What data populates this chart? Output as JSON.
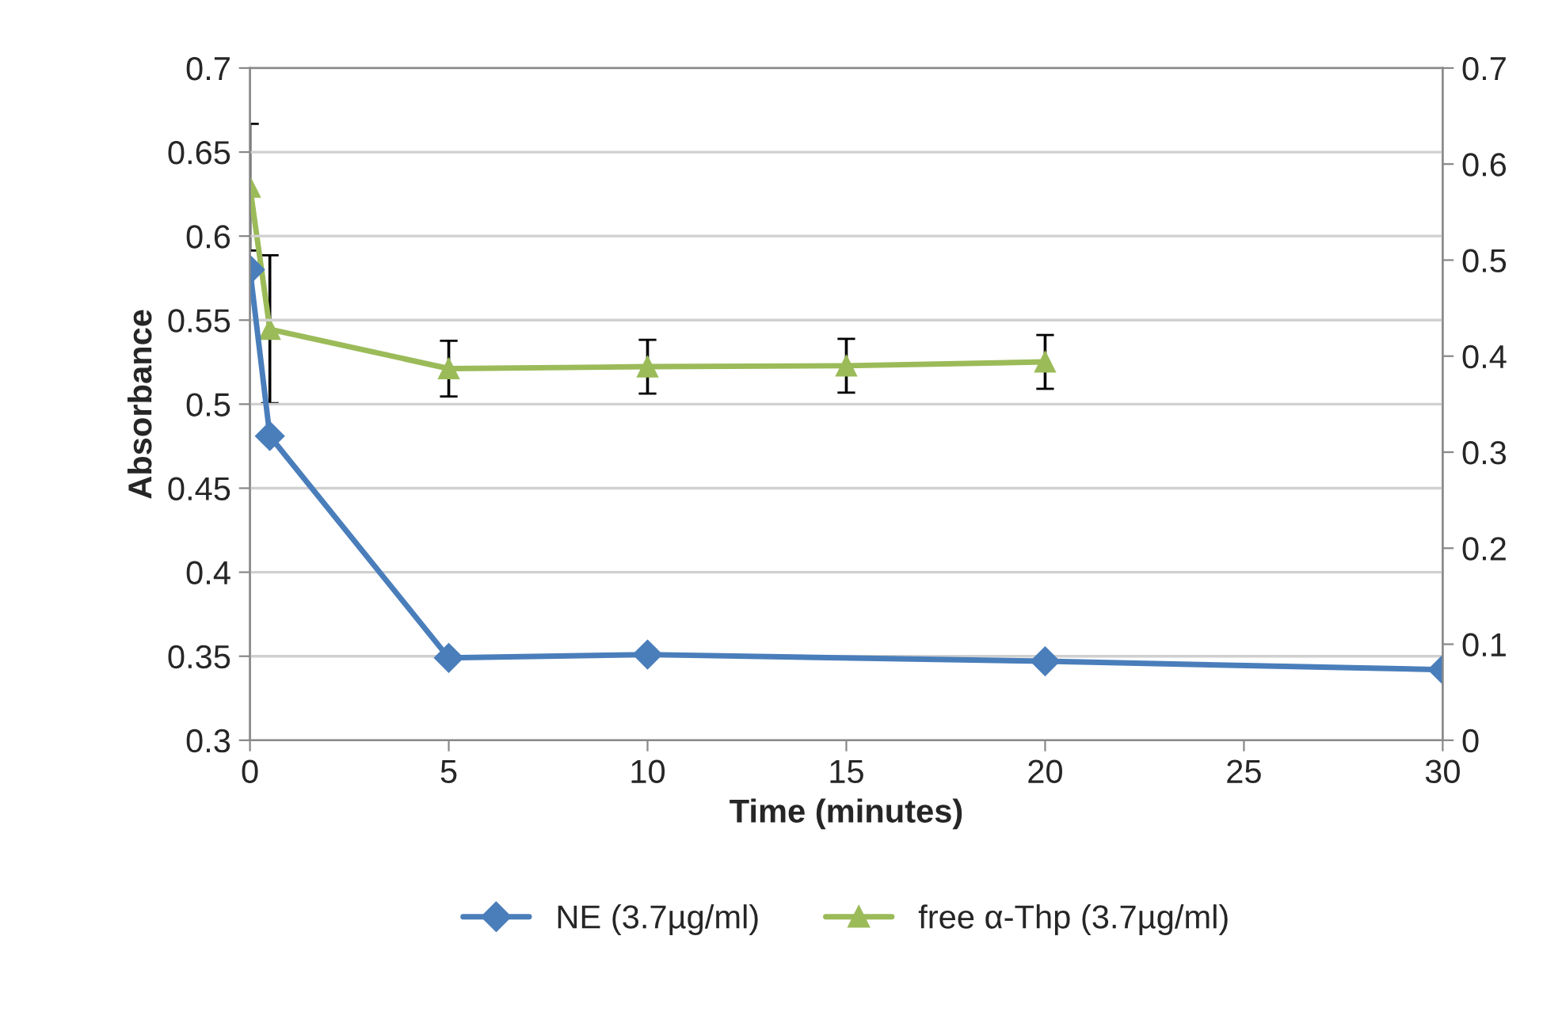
{
  "chart_data": {
    "type": "line",
    "xlabel": "Time (minutes)",
    "ylabel": "Absorbance",
    "xlim": [
      0,
      30
    ],
    "xticks": [
      0,
      5,
      10,
      15,
      20,
      25,
      30
    ],
    "ylim": [
      0.3,
      0.7
    ],
    "yticks": [
      0.3,
      0.35,
      0.4,
      0.45,
      0.5,
      0.55,
      0.6,
      0.65,
      0.7
    ],
    "y2lim": [
      0,
      0.7
    ],
    "y2ticks": [
      0,
      0.1,
      0.2,
      0.3,
      0.4,
      0.5,
      0.6,
      0.7
    ],
    "grid": "y",
    "legend": "bottom",
    "series": [
      {
        "name": "NE (3.7µg/ml)",
        "color": "#4a7ebb",
        "marker": "diamond",
        "x": [
          0,
          0.5,
          5,
          10,
          20,
          30
        ],
        "values": [
          0.58,
          0.481,
          0.349,
          0.351,
          0.347,
          0.342
        ]
      },
      {
        "name": "free α-Thp (3.7µg/ml)",
        "color": "#9bbb59",
        "marker": "triangle",
        "axis": "y2",
        "x": [
          0,
          0.5,
          5,
          10,
          15,
          20
        ],
        "values": [
          0.576,
          0.428,
          0.387,
          0.389,
          0.39,
          0.394
        ],
        "errors": [
          0.066,
          0.077,
          0.029,
          0.028,
          0.028,
          0.028
        ]
      }
    ]
  }
}
